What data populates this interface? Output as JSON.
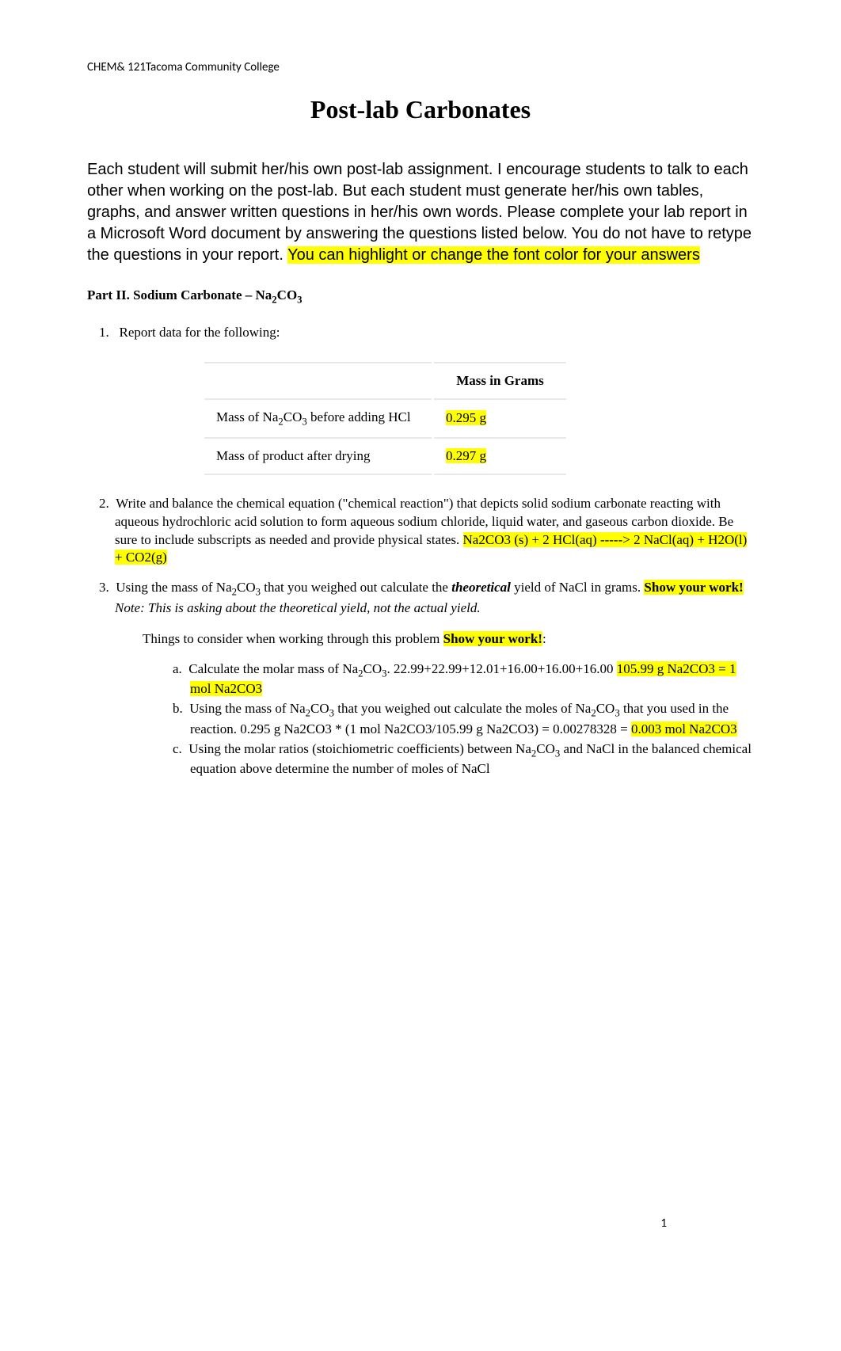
{
  "header": {
    "course": "CHEM& 121Tacoma Community College"
  },
  "title": "Post-lab Carbonates",
  "intro": {
    "part1": "Each student will submit her/his own post-lab assignment.  I encourage students to talk to each other when working on the post-lab.  But each student must generate her/his own tables, graphs, and answer written questions in her/his own words. Please complete your lab report in a Microsoft Word document by answering the questions listed below.  You do not have to retype the questions in your report.  ",
    "highlight1": "You can highlight or change the font color for your answers"
  },
  "section_heading": {
    "prefix": "Part II.  Sodium Carbonate – Na",
    "sub1": "2",
    "mid": "CO",
    "sub2": "3"
  },
  "q1": {
    "number": "1.",
    "text": "Report data for the following:"
  },
  "table": {
    "header": "Mass in Grams",
    "row1_label_prefix": "Mass of Na",
    "row1_label_sub1": "2",
    "row1_label_mid": "CO",
    "row1_label_sub2": "3",
    "row1_label_suffix": " before adding HCl",
    "row1_value": "0.295 g",
    "row2_label": "Mass of product after drying",
    "row2_value": "0.297 g"
  },
  "q2": {
    "number": "2.",
    "text": "Write and balance the chemical equation (\"chemical reaction\") that depicts solid sodium carbonate reacting with aqueous hydrochloric acid solution to form aqueous sodium chloride, liquid water, and gaseous carbon dioxide.  Be sure to include subscripts as needed and provide physical states. ",
    "answer": "Na2CO3 (s) + 2 HCl(aq) -----> 2 NaCl(aq) + H2O(l) + CO2(g)"
  },
  "q3": {
    "number": "3.",
    "text_prefix": "Using the mass of Na",
    "sub1": "2",
    "text_mid1": "CO",
    "sub2": "3",
    "text_mid2": " that you weighed out calculate the ",
    "theoretical": "theoretical",
    "text_suffix": " yield of NaCl in grams. ",
    "show_work": "Show your work!",
    "note": " Note: This is asking about the theoretical yield, not the actual yield."
  },
  "consider": {
    "text": "Things to consider when working through this problem ",
    "show_work": "Show your work!",
    "colon": ":"
  },
  "item_a": {
    "letter": "a.",
    "text_prefix": "Calculate the molar mass of Na",
    "sub1": "2",
    "text_mid": "CO",
    "sub2": "3",
    "text_suffix": ". 22.99+22.99+12.01+16.00+16.00+16.00 ",
    "answer": "105.99 g Na2CO3 = 1 mol Na2CO3"
  },
  "item_b": {
    "letter": "b.",
    "text_prefix": "Using the mass of Na",
    "sub1": "2",
    "text_mid1": "CO",
    "sub2": "3",
    "text_mid2": " that you weighed out calculate the moles of Na",
    "sub3": "2",
    "text_mid3": "CO",
    "sub4": "3",
    "text_suffix": " that you used in the reaction.  0.295 g Na2CO3 * (1 mol Na2CO3/105.99 g Na2CO3) = 0.00278328 = ",
    "answer": "0.003 mol Na2CO3"
  },
  "item_c": {
    "letter": "c.",
    "text_prefix": "Using the molar ratios (stoichiometric coefficients) between Na",
    "sub1": "2",
    "text_mid": "CO",
    "sub2": "3",
    "text_suffix": " and NaCl in the balanced chemical equation above determine the number of moles of NaCl"
  },
  "page_number": "1",
  "colors": {
    "highlight": "#ffff00",
    "text": "#000000",
    "background": "#ffffff",
    "table_border": "#e8e8e8"
  }
}
